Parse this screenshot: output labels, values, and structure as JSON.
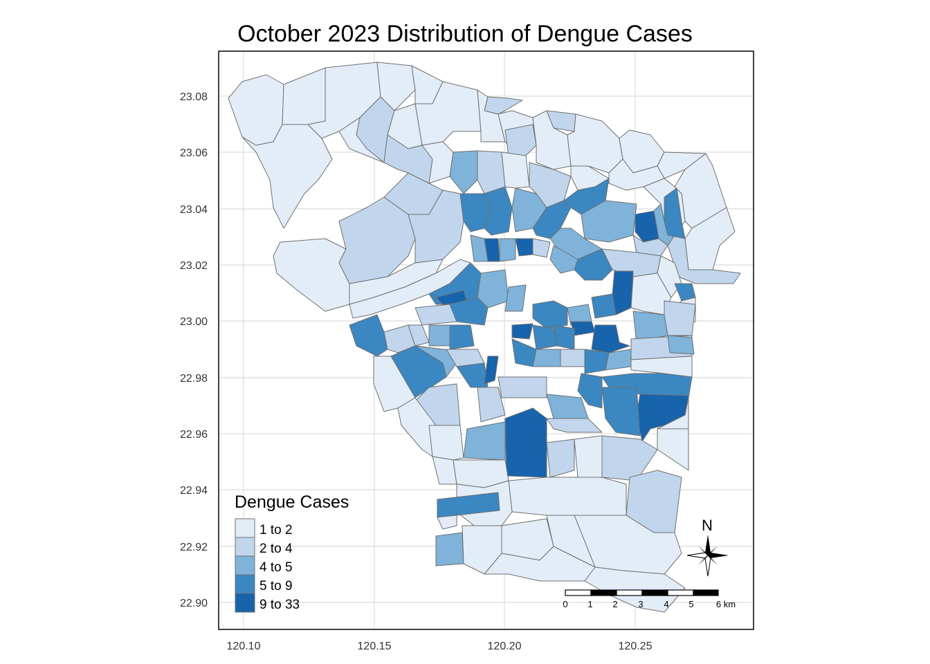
{
  "title": "October 2023 Distribution of Dengue Cases",
  "legend": {
    "title": "Dengue Cases",
    "classes": [
      {
        "label": "1 to 2",
        "color": "#e3edf8"
      },
      {
        "label": "2 to 4",
        "color": "#c1d6ec"
      },
      {
        "label": "4 to 5",
        "color": "#7fb3d9"
      },
      {
        "label": "5 to 9",
        "color": "#3b87c2"
      },
      {
        "label": "9 to 33",
        "color": "#1763ac"
      }
    ]
  },
  "axes": {
    "x_ticks": [
      "120.10",
      "120.15",
      "120.20",
      "120.25"
    ],
    "y_ticks": [
      "23.08",
      "23.06",
      "23.04",
      "23.02",
      "23.00",
      "22.98",
      "22.96",
      "22.94",
      "22.92",
      "22.90"
    ]
  },
  "scale_bar": {
    "labels": [
      "0",
      "1",
      "2",
      "3",
      "4",
      "5",
      "6 km"
    ]
  },
  "north_arrow": {
    "label": "N",
    "icon": "compass-rose-icon"
  },
  "colors": {
    "grid": "#dcdcdc",
    "border": "#000000",
    "district_outline": "#6f6f6f"
  }
}
